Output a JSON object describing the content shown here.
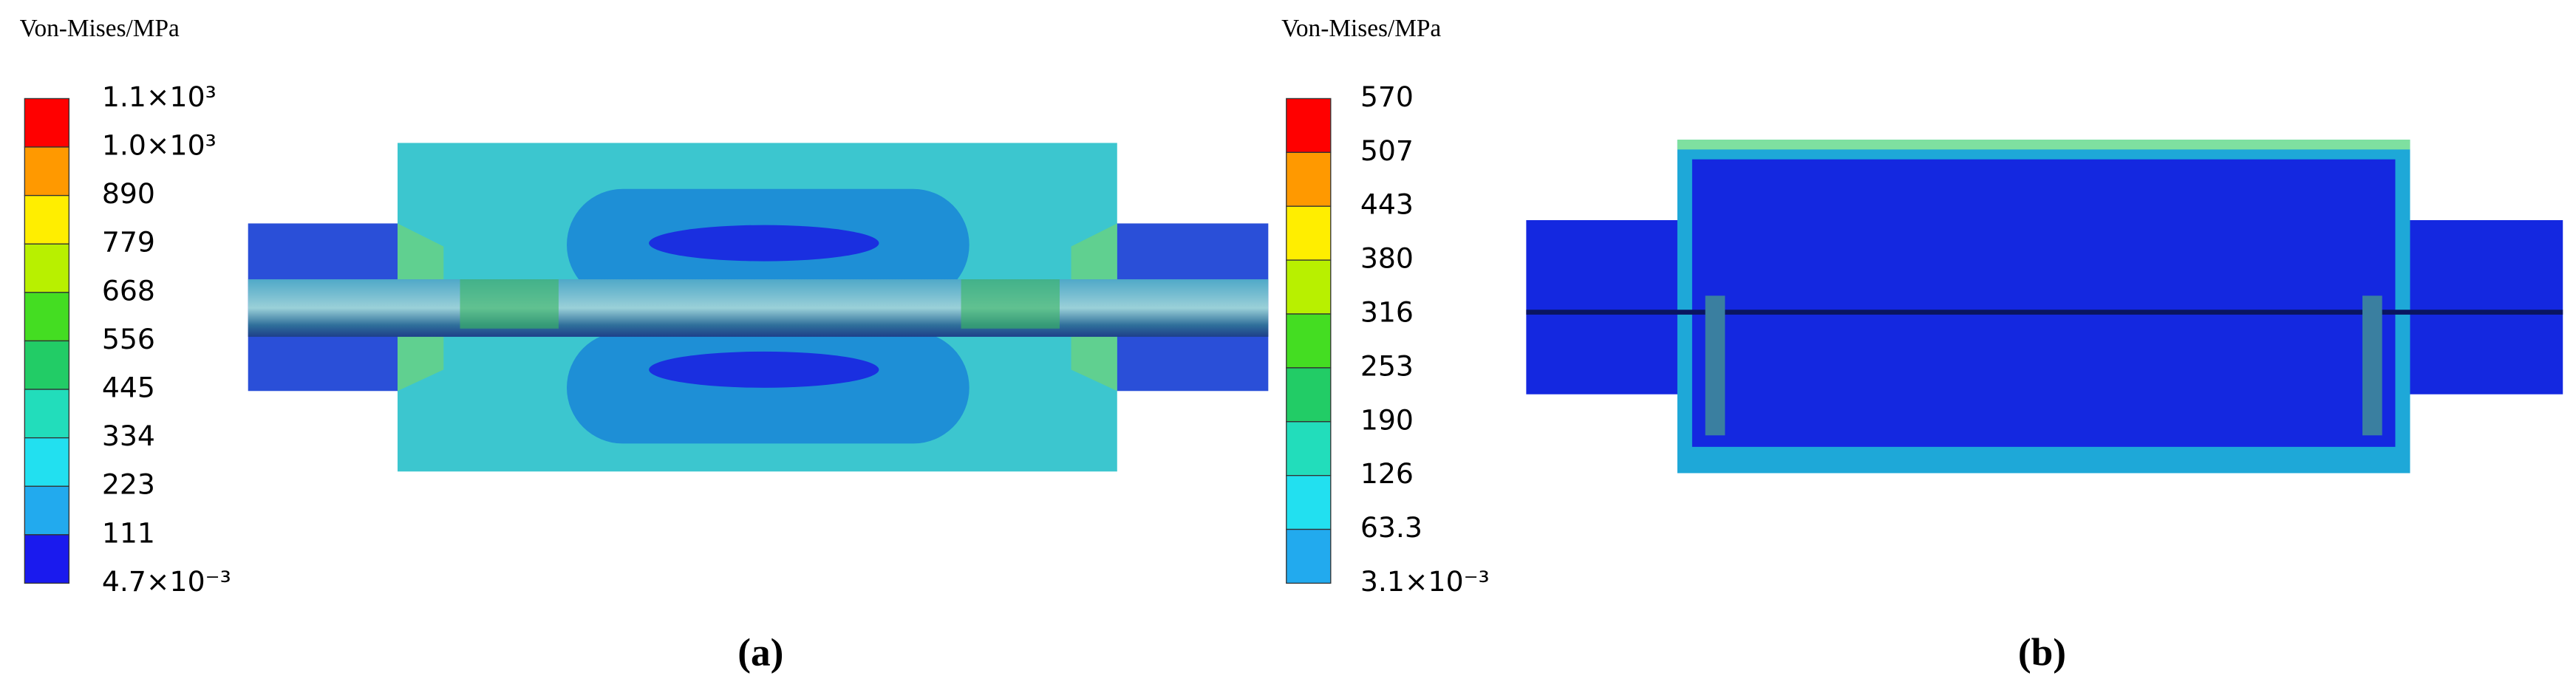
{
  "panels": [
    {
      "legend_title": "Von-Mises/MPa",
      "legend_labels": [
        "1.1×10³",
        "1.0×10³",
        "890",
        "779",
        "668",
        "556",
        "445",
        "334",
        "223",
        "111",
        "4.7×10⁻³"
      ],
      "caption": "(a)"
    },
    {
      "legend_title": "Von-Mises/MPa",
      "legend_labels": [
        "570",
        "507",
        "443",
        "380",
        "316",
        "253",
        "190",
        "126",
        "63.3",
        "3.1×10⁻³"
      ],
      "caption": "(b)"
    }
  ]
}
